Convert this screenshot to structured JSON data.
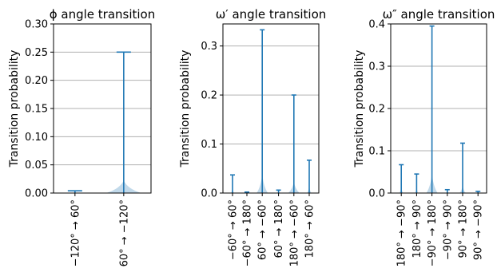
{
  "chart_data": [
    {
      "type": "violin",
      "title": "ϕ angle transition",
      "ylabel": "Transition probability",
      "ylim": [
        0,
        0.3
      ],
      "yticks": [
        0.0,
        0.05,
        0.1,
        0.15,
        0.2,
        0.25,
        0.3
      ],
      "ytick_labels": [
        "0.00",
        "0.05",
        "0.10",
        "0.15",
        "0.20",
        "0.25",
        "0.30"
      ],
      "grid": true,
      "categories": [
        "−120° → 60°",
        "60° → −120°"
      ],
      "values": [
        0.004,
        0.25
      ],
      "colors": {
        "mark": "#1f77b4"
      }
    },
    {
      "type": "violin",
      "title": "ω′ angle transition",
      "ylabel": "Transition probability",
      "ylim": [
        0,
        0.345
      ],
      "yticks": [
        0.0,
        0.1,
        0.2,
        0.3
      ],
      "ytick_labels": [
        "0.0",
        "0.1",
        "0.2",
        "0.3"
      ],
      "grid": true,
      "categories": [
        "−60° → 60°",
        "−60° → 180°",
        "60° → −60°",
        "60° → 180°",
        "180° → −60°",
        "180° → 60°"
      ],
      "values": [
        0.037,
        0.002,
        0.333,
        0.006,
        0.2,
        0.067
      ],
      "colors": {
        "mark": "#1f77b4"
      }
    },
    {
      "type": "violin",
      "title": "ω″ angle transition",
      "ylabel": "Transition probability",
      "ylim": [
        0,
        0.4
      ],
      "yticks": [
        0.0,
        0.1,
        0.2,
        0.3,
        0.4
      ],
      "ytick_labels": [
        "0.0",
        "0.1",
        "0.2",
        "0.3",
        "0.4"
      ],
      "grid": true,
      "categories": [
        "180° → −90°",
        "180° → 90°",
        "−90° → 180°",
        "−90° → 90°",
        "90° → 180°",
        "90° → −90°"
      ],
      "values": [
        0.067,
        0.045,
        0.395,
        0.008,
        0.118,
        0.004
      ],
      "colors": {
        "mark": "#1f77b4"
      }
    }
  ]
}
